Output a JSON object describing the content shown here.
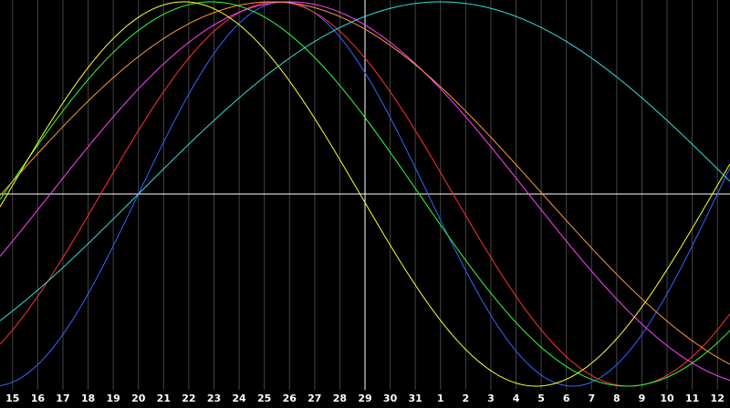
{
  "chart_data": {
    "type": "line",
    "x_ticks": [
      "15",
      "16",
      "17",
      "18",
      "19",
      "20",
      "21",
      "22",
      "23",
      "24",
      "25",
      "26",
      "27",
      "28",
      "29",
      "30",
      "31",
      "1",
      "2",
      "3",
      "4",
      "5",
      "6",
      "7",
      "8",
      "9",
      "10",
      "11",
      "12"
    ],
    "x_range": [
      14.5,
      43.5
    ],
    "y_range": [
      -1,
      1
    ],
    "grid": true,
    "background": "#000000",
    "grid_color": "#444444",
    "axis_color": "#ffffff",
    "cursor_x": 29,
    "series": [
      {
        "color": "#3366ff",
        "period": 23,
        "peak": 25.75
      },
      {
        "color": "#ff3333",
        "period": 28,
        "peak": 25.5
      },
      {
        "color": "#33ff33",
        "period": 33,
        "peak": 22.9
      },
      {
        "color": "#ff44ff",
        "period": 38,
        "peak": 26.0
      },
      {
        "color": "#ff9933",
        "period": 43,
        "peak": 25.3
      },
      {
        "color": "#ffff33",
        "period": 28,
        "peak": 21.8
      },
      {
        "color": "#33dddd",
        "period": 48,
        "peak": 32.0
      }
    ]
  }
}
